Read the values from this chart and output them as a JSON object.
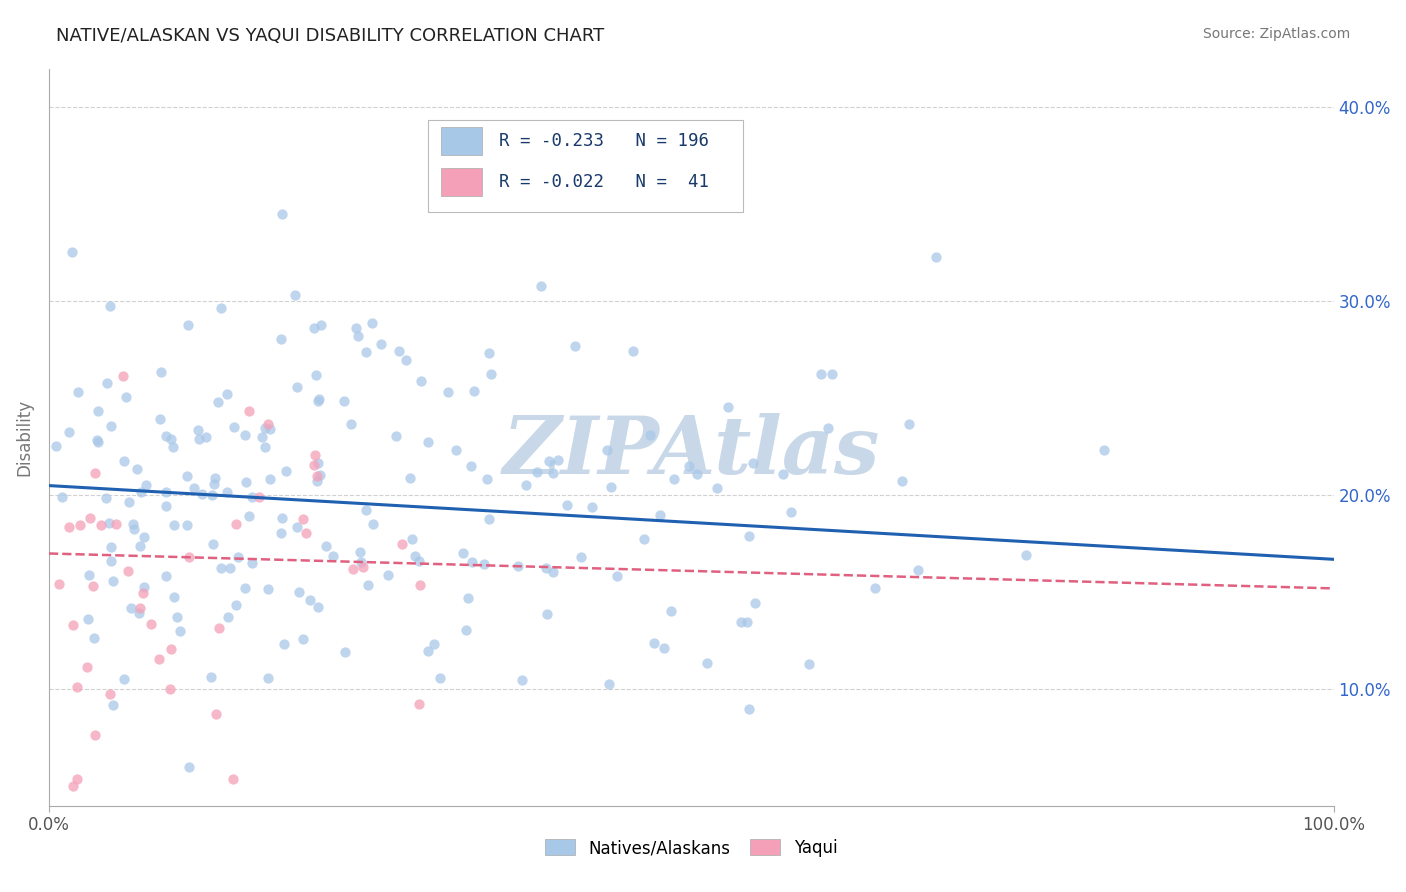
{
  "title": "NATIVE/ALASKAN VS YAQUI DISABILITY CORRELATION CHART",
  "source_text": "Source: ZipAtlas.com",
  "ylabel": "Disability",
  "xlim": [
    0.0,
    1.0
  ],
  "ylim": [
    0.04,
    0.42
  ],
  "yticks": [
    0.1,
    0.2,
    0.3,
    0.4
  ],
  "ytick_labels": [
    "10.0%",
    "20.0%",
    "30.0%",
    "40.0%"
  ],
  "xticks": [
    0.0,
    1.0
  ],
  "xtick_labels": [
    "0.0%",
    "100.0%"
  ],
  "blue_R": -0.233,
  "blue_N": 196,
  "pink_R": -0.022,
  "pink_N": 41,
  "blue_color": "#a8c8e8",
  "blue_line_color": "#2060b0",
  "pink_color": "#f4a0b8",
  "pink_line_color": "#e06080",
  "blue_intercept": 0.205,
  "blue_slope": -0.038,
  "pink_intercept": 0.17,
  "pink_slope": -0.018,
  "background_color": "#ffffff",
  "grid_color": "#cccccc",
  "title_color": "#222222",
  "right_axis_color": "#3366cc",
  "watermark_text": "ZIPAtlas",
  "watermark_color": "#c8d8e8",
  "legend_text_color": "#1a3a6b",
  "legend_N_color": "#2255bb"
}
